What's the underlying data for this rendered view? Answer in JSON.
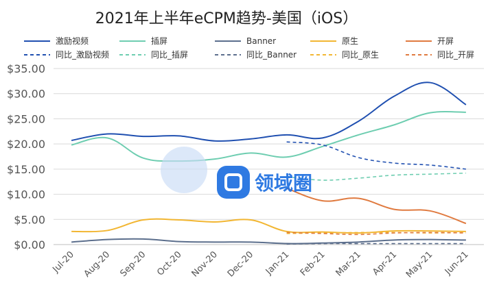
{
  "chart_data": {
    "type": "line",
    "title": "2021年上半年eCPM趋势-美国（iOS）",
    "categories": [
      "Jul-20",
      "Aug-20",
      "Sep-20",
      "Oct-20",
      "Nov-20",
      "Dec-20",
      "Jan-21",
      "Feb-21",
      "Mar-21",
      "Apr-21",
      "May-21",
      "Jun-21"
    ],
    "ylim": [
      0,
      35
    ],
    "yticks": [
      "$0.00",
      "$5.00",
      "$10.00",
      "$15.00",
      "$20.00",
      "$25.00",
      "$30.00",
      "$35.00"
    ],
    "grid": true,
    "legend_position": "top",
    "series": [
      {
        "name": "激励视频",
        "color": "#1f4fb0",
        "dash": false,
        "values": [
          20.7,
          22.0,
          21.5,
          21.6,
          20.6,
          21.0,
          21.8,
          21.2,
          24.5,
          29.5,
          32.2,
          27.8
        ]
      },
      {
        "name": "插屏",
        "color": "#6dcdb0",
        "dash": false,
        "values": [
          19.8,
          21.2,
          17.2,
          16.6,
          17.0,
          18.2,
          17.4,
          19.5,
          21.8,
          23.8,
          26.2,
          26.3
        ]
      },
      {
        "name": "Banner",
        "color": "#5b6e8c",
        "dash": false,
        "values": [
          0.5,
          1.0,
          1.1,
          0.6,
          0.5,
          0.5,
          0.2,
          0.3,
          0.5,
          0.9,
          1.0,
          0.9
        ]
      },
      {
        "name": "原生",
        "color": "#f2b632",
        "dash": false,
        "values": [
          2.6,
          2.8,
          4.9,
          4.9,
          4.5,
          4.9,
          2.6,
          2.5,
          2.3,
          2.7,
          2.7,
          2.6
        ]
      },
      {
        "name": "开屏",
        "color": "#e07a3f",
        "dash": false,
        "values": [
          null,
          null,
          null,
          null,
          null,
          null,
          11.2,
          8.7,
          9.2,
          7.0,
          6.7,
          4.2
        ]
      },
      {
        "name": "同比_激励视频",
        "color": "#1f4fb0",
        "dash": true,
        "values": [
          null,
          null,
          null,
          null,
          null,
          null,
          20.4,
          19.8,
          17.3,
          16.2,
          15.8,
          15.0
        ]
      },
      {
        "name": "同比_插屏",
        "color": "#6dcdb0",
        "dash": true,
        "values": [
          null,
          null,
          null,
          null,
          null,
          null,
          13.5,
          12.8,
          13.2,
          13.8,
          14.0,
          14.2
        ]
      },
      {
        "name": "同比_Banner",
        "color": "#5b6e8c",
        "dash": true,
        "values": [
          null,
          null,
          null,
          null,
          null,
          null,
          0.1,
          0.2,
          0.2,
          0.2,
          0.2,
          0.2
        ]
      },
      {
        "name": "同比_原生",
        "color": "#f2b632",
        "dash": true,
        "values": [
          null,
          null,
          null,
          null,
          null,
          null,
          2.2,
          2.3,
          2.4,
          2.4,
          2.3,
          2.4
        ]
      },
      {
        "name": "同比_开屏",
        "color": "#e07a3f",
        "dash": true,
        "values": [
          null,
          null,
          null,
          null,
          null,
          null,
          2.4,
          2.2,
          2.0,
          2.3,
          2.4,
          2.3
        ]
      }
    ]
  },
  "watermark": {
    "text": "领域圈"
  }
}
